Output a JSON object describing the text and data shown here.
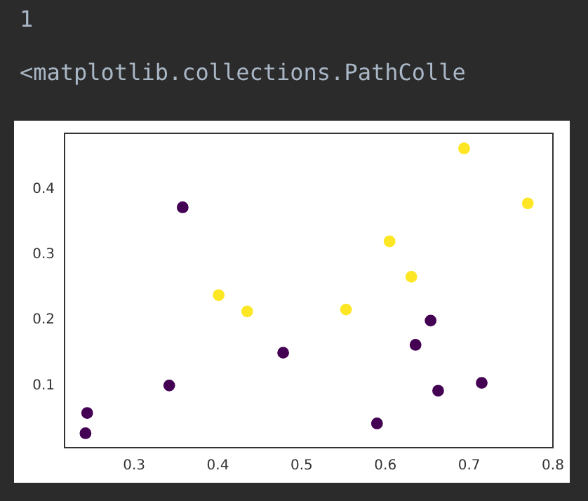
{
  "chart_data": {
    "type": "scatter",
    "annotations": [
      "1",
      "<matplotlib.collections.PathColle"
    ],
    "series": [
      {
        "color": "#440154",
        "x": [
          0.358,
          0.478,
          0.342,
          0.244,
          0.242,
          0.654,
          0.636,
          0.715,
          0.663,
          0.59
        ],
        "values": [
          0.372,
          0.15,
          0.1,
          0.058,
          0.027,
          0.199,
          0.162,
          0.104,
          0.092,
          0.042
        ]
      },
      {
        "color": "#fde725",
        "x": [
          0.401,
          0.435,
          0.694,
          0.77,
          0.605,
          0.631,
          0.553
        ],
        "values": [
          0.238,
          0.213,
          0.462,
          0.378,
          0.32,
          0.266,
          0.216
        ]
      }
    ],
    "xlim": [
      0.217,
      0.8
    ],
    "ylim": [
      0.005,
      0.485
    ],
    "xticks": [
      0.3,
      0.4,
      0.5,
      0.6,
      0.7,
      0.8
    ],
    "yticks": [
      0.1,
      0.2,
      0.3,
      0.4
    ],
    "grid": false,
    "legend": false,
    "marker": "circle"
  }
}
